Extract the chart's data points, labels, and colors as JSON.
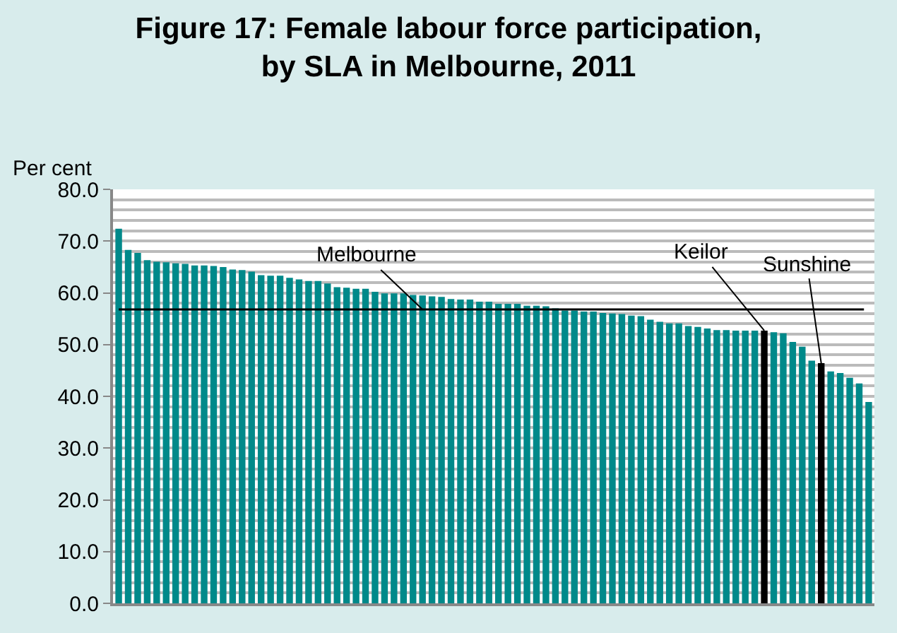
{
  "chart_data": {
    "type": "bar",
    "title": "Figure 17: Female labour force participation, by SLA in Melbourne, 2011",
    "ylabel": "Per cent",
    "categories": [
      null,
      null,
      null,
      null,
      null,
      null,
      null,
      null,
      null,
      null,
      null,
      null,
      null,
      null,
      null,
      null,
      null,
      null,
      null,
      null,
      null,
      null,
      null,
      null,
      null,
      null,
      null,
      null,
      null,
      null,
      null,
      null,
      null,
      null,
      null,
      null,
      null,
      null,
      null,
      null,
      null,
      null,
      null,
      null,
      null,
      null,
      null,
      null,
      null,
      null,
      null,
      null,
      null,
      null,
      null,
      null,
      null,
      null,
      null,
      null,
      null,
      null,
      null,
      null,
      null,
      null,
      null,
      null,
      null,
      null,
      null,
      null,
      null,
      null,
      null,
      null,
      null,
      null,
      null,
      null
    ],
    "values": [
      72.4,
      68.3,
      67.7,
      66.3,
      66.0,
      65.9,
      65.7,
      65.6,
      65.3,
      65.3,
      65.2,
      65.0,
      64.5,
      64.4,
      64.1,
      63.4,
      63.3,
      63.3,
      62.9,
      62.6,
      62.3,
      62.3,
      61.8,
      61.1,
      61.0,
      60.8,
      60.8,
      60.2,
      59.9,
      59.9,
      59.9,
      59.6,
      59.5,
      59.3,
      59.2,
      58.8,
      58.7,
      58.7,
      58.3,
      58.3,
      57.9,
      57.9,
      57.9,
      57.5,
      57.5,
      57.4,
      57.0,
      56.6,
      56.6,
      56.4,
      56.4,
      56.1,
      56.0,
      55.9,
      55.6,
      55.5,
      54.8,
      54.4,
      54.1,
      54.1,
      53.6,
      53.4,
      53.1,
      52.8,
      52.8,
      52.7,
      52.7,
      52.7,
      52.7,
      52.4,
      52.2,
      50.5,
      49.6,
      46.9,
      46.4,
      44.8,
      44.5,
      43.6,
      42.5,
      38.9
    ],
    "colors": [
      "#00898a",
      "#00898a",
      "#00898a",
      "#00898a",
      "#00898a",
      "#00898a",
      "#00898a",
      "#00898a",
      "#00898a",
      "#00898a",
      "#00898a",
      "#00898a",
      "#00898a",
      "#00898a",
      "#00898a",
      "#00898a",
      "#00898a",
      "#00898a",
      "#00898a",
      "#00898a",
      "#00898a",
      "#00898a",
      "#00898a",
      "#00898a",
      "#00898a",
      "#00898a",
      "#00898a",
      "#00898a",
      "#00898a",
      "#00898a",
      "#00898a",
      "#00898a",
      "#00898a",
      "#00898a",
      "#00898a",
      "#00898a",
      "#00898a",
      "#00898a",
      "#00898a",
      "#00898a",
      "#00898a",
      "#00898a",
      "#00898a",
      "#00898a",
      "#00898a",
      "#00898a",
      "#00898a",
      "#00898a",
      "#00898a",
      "#00898a",
      "#00898a",
      "#00898a",
      "#00898a",
      "#00898a",
      "#00898a",
      "#00898a",
      "#00898a",
      "#00898a",
      "#00898a",
      "#00898a",
      "#00898a",
      "#00898a",
      "#00898a",
      "#00898a",
      "#00898a",
      "#00898a",
      "#00898a",
      "#00898a",
      "#000000",
      "#00898a",
      "#00898a",
      "#00898a",
      "#00898a",
      "#00898a",
      "#000000",
      "#00898a",
      "#00898a",
      "#00898a",
      "#00898a",
      "#00898a"
    ],
    "ylim": [
      0,
      80
    ],
    "yticks": [
      {
        "value": 0,
        "label": "0.0"
      },
      {
        "value": 10,
        "label": "10.0"
      },
      {
        "value": 20,
        "label": "20.0"
      },
      {
        "value": 30,
        "label": "30.0"
      },
      {
        "value": 40,
        "label": "40.0"
      },
      {
        "value": 50,
        "label": "50.0"
      },
      {
        "value": 60,
        "label": "60.0"
      },
      {
        "value": 70,
        "label": "70.0"
      },
      {
        "value": 80,
        "label": "80.0"
      }
    ],
    "grid": "y",
    "tick_labels": "y",
    "ref_lines": [
      {
        "axis": "y",
        "value": 56.8,
        "label": "Melbourne",
        "color": "#000000"
      }
    ],
    "annotations": [
      "Keilor",
      "Sunshine"
    ]
  }
}
